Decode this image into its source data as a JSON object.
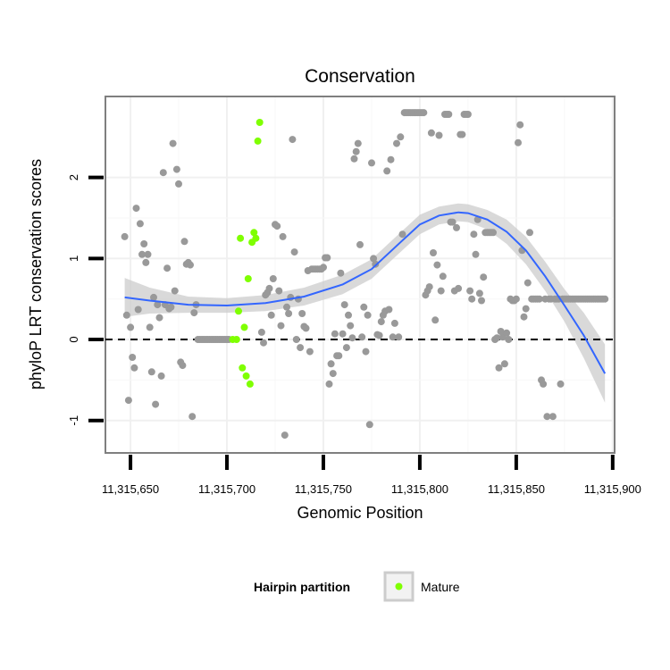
{
  "chart_data": {
    "type": "scatter",
    "title": "Conservation",
    "xlabel": "Genomic Position",
    "ylabel": "phyloP LRT conservation scores",
    "xlim": [
      11315637,
      11315901
    ],
    "ylim": [
      -1.4,
      3.0
    ],
    "x_ticks": [
      11315650,
      11315700,
      11315750,
      11315800,
      11315850,
      11315900
    ],
    "x_tick_labels": [
      "11,315,650",
      "11,315,700",
      "11,315,750",
      "11,315,800",
      "11,315,850",
      "11,315,900"
    ],
    "y_ticks": [
      -1,
      0,
      1,
      2
    ],
    "y_tick_labels": [
      "-1",
      "0",
      "1",
      "2"
    ],
    "grid": true,
    "reference_line": {
      "y": 0,
      "style": "dashed"
    },
    "legend": {
      "title": "Hairpin partition",
      "position": "bottom",
      "entries": [
        "Mature"
      ]
    },
    "colors": {
      "other": "#999999",
      "mature": "#7fff00",
      "smooth": "#3366ff",
      "ribbon": "#cccccc",
      "reference": "#000000"
    },
    "series": [
      {
        "name": "",
        "points": [
          [
            11315647,
            1.27
          ],
          [
            11315648,
            0.3
          ],
          [
            11315649,
            -0.75
          ],
          [
            11315650,
            0.15
          ],
          [
            11315651,
            -0.22
          ],
          [
            11315652,
            -0.35
          ],
          [
            11315653,
            1.62
          ],
          [
            11315654,
            0.37
          ],
          [
            11315655,
            1.43
          ],
          [
            11315656,
            1.05
          ],
          [
            11315657,
            1.18
          ],
          [
            11315658,
            0.95
          ],
          [
            11315659,
            1.05
          ],
          [
            11315660,
            0.15
          ],
          [
            11315661,
            -0.4
          ],
          [
            11315662,
            0.52
          ],
          [
            11315663,
            -0.8
          ],
          [
            11315664,
            0.43
          ],
          [
            11315665,
            0.27
          ],
          [
            11315666,
            -0.45
          ],
          [
            11315667,
            2.06
          ],
          [
            11315668,
            0.43
          ],
          [
            11315669,
            0.88
          ],
          [
            11315670,
            0.38
          ],
          [
            11315671,
            0.4
          ],
          [
            11315672,
            2.42
          ],
          [
            11315673,
            0.6
          ],
          [
            11315674,
            2.1
          ],
          [
            11315675,
            1.92
          ],
          [
            11315676,
            -0.28
          ],
          [
            11315677,
            -0.32
          ],
          [
            11315678,
            1.21
          ],
          [
            11315679,
            0.93
          ],
          [
            11315680,
            0.95
          ],
          [
            11315681,
            0.92
          ],
          [
            11315682,
            -0.95
          ],
          [
            11315683,
            0.33
          ],
          [
            11315684,
            0.43
          ],
          [
            11315685,
            0.0
          ],
          [
            11315686,
            0.0
          ],
          [
            11315687,
            0.0
          ],
          [
            11315688,
            0.0
          ],
          [
            11315689,
            0.0
          ],
          [
            11315690,
            0.0
          ],
          [
            11315691,
            0.0
          ],
          [
            11315692,
            0.0
          ],
          [
            11315693,
            0.0
          ],
          [
            11315694,
            0.0
          ],
          [
            11315695,
            0.0
          ],
          [
            11315696,
            0.0
          ],
          [
            11315697,
            0.0
          ],
          [
            11315698,
            0.0
          ],
          [
            11315699,
            0.0
          ],
          [
            11315700,
            0.0
          ],
          [
            11315701,
            0.0
          ],
          [
            11315718,
            0.09
          ],
          [
            11315719,
            -0.04
          ],
          [
            11315720,
            0.55
          ],
          [
            11315721,
            0.58
          ],
          [
            11315722,
            0.63
          ],
          [
            11315723,
            0.3
          ],
          [
            11315724,
            0.75
          ],
          [
            11315725,
            1.42
          ],
          [
            11315726,
            1.4
          ],
          [
            11315727,
            0.6
          ],
          [
            11315728,
            0.17
          ],
          [
            11315729,
            1.27
          ],
          [
            11315730,
            -1.18
          ],
          [
            11315731,
            0.4
          ],
          [
            11315732,
            0.32
          ],
          [
            11315733,
            0.52
          ],
          [
            11315734,
            2.47
          ],
          [
            11315735,
            1.08
          ],
          [
            11315736,
            0.0
          ],
          [
            11315737,
            0.5
          ],
          [
            11315738,
            -0.1
          ],
          [
            11315739,
            0.32
          ],
          [
            11315740,
            0.16
          ],
          [
            11315741,
            0.14
          ],
          [
            11315742,
            0.85
          ],
          [
            11315743,
            -0.15
          ],
          [
            11315744,
            0.87
          ],
          [
            11315745,
            0.87
          ],
          [
            11315746,
            0.87
          ],
          [
            11315747,
            0.87
          ],
          [
            11315748,
            0.87
          ],
          [
            11315749,
            0.87
          ],
          [
            11315750,
            0.89
          ],
          [
            11315751,
            1.01
          ],
          [
            11315752,
            1.01
          ],
          [
            11315753,
            -0.55
          ],
          [
            11315754,
            -0.3
          ],
          [
            11315755,
            -0.42
          ],
          [
            11315756,
            0.07
          ],
          [
            11315757,
            -0.2
          ],
          [
            11315758,
            -0.2
          ],
          [
            11315759,
            0.82
          ],
          [
            11315760,
            0.07
          ],
          [
            11315761,
            0.43
          ],
          [
            11315762,
            -0.1
          ],
          [
            11315763,
            0.3
          ],
          [
            11315764,
            0.17
          ],
          [
            11315765,
            0.02
          ],
          [
            11315766,
            2.23
          ],
          [
            11315767,
            2.32
          ],
          [
            11315768,
            2.42
          ],
          [
            11315769,
            1.17
          ],
          [
            11315770,
            0.03
          ],
          [
            11315771,
            0.4
          ],
          [
            11315772,
            -0.15
          ],
          [
            11315773,
            0.3
          ],
          [
            11315774,
            -1.05
          ],
          [
            11315775,
            2.18
          ],
          [
            11315776,
            1.0
          ],
          [
            11315777,
            0.93
          ],
          [
            11315778,
            0.06
          ],
          [
            11315779,
            0.05
          ],
          [
            11315780,
            0.22
          ],
          [
            11315781,
            0.3
          ],
          [
            11315782,
            0.35
          ],
          [
            11315783,
            2.08
          ],
          [
            11315784,
            0.37
          ],
          [
            11315785,
            2.22
          ],
          [
            11315786,
            0.03
          ],
          [
            11315787,
            0.2
          ],
          [
            11315788,
            2.42
          ],
          [
            11315789,
            0.03
          ],
          [
            11315790,
            2.5
          ],
          [
            11315791,
            1.3
          ],
          [
            11315792,
            2.8
          ],
          [
            11315793,
            2.8
          ],
          [
            11315794,
            2.8
          ],
          [
            11315795,
            2.8
          ],
          [
            11315796,
            2.8
          ],
          [
            11315797,
            2.8
          ],
          [
            11315798,
            2.8
          ],
          [
            11315799,
            2.8
          ],
          [
            11315800,
            2.8
          ],
          [
            11315801,
            2.8
          ],
          [
            11315802,
            2.8
          ],
          [
            11315803,
            0.55
          ],
          [
            11315804,
            0.6
          ],
          [
            11315805,
            0.65
          ],
          [
            11315806,
            2.55
          ],
          [
            11315807,
            1.07
          ],
          [
            11315808,
            0.24
          ],
          [
            11315809,
            0.92
          ],
          [
            11315810,
            2.52
          ],
          [
            11315811,
            0.6
          ],
          [
            11315812,
            0.78
          ],
          [
            11315813,
            2.78
          ],
          [
            11315814,
            2.78
          ],
          [
            11315815,
            2.78
          ],
          [
            11315816,
            1.45
          ],
          [
            11315817,
            1.45
          ],
          [
            11315818,
            0.6
          ],
          [
            11315819,
            1.38
          ],
          [
            11315820,
            0.63
          ],
          [
            11315821,
            2.53
          ],
          [
            11315822,
            2.53
          ],
          [
            11315823,
            2.78
          ],
          [
            11315824,
            2.78
          ],
          [
            11315825,
            2.78
          ],
          [
            11315826,
            0.6
          ],
          [
            11315827,
            0.5
          ],
          [
            11315828,
            1.3
          ],
          [
            11315829,
            1.05
          ],
          [
            11315830,
            1.48
          ],
          [
            11315831,
            0.57
          ],
          [
            11315832,
            0.48
          ],
          [
            11315833,
            0.77
          ],
          [
            11315834,
            1.32
          ],
          [
            11315835,
            1.32
          ],
          [
            11315836,
            1.32
          ],
          [
            11315837,
            1.32
          ],
          [
            11315838,
            1.32
          ],
          [
            11315839,
            0.0
          ],
          [
            11315840,
            0.02
          ],
          [
            11315841,
            -0.35
          ],
          [
            11315842,
            0.1
          ],
          [
            11315843,
            0.03
          ],
          [
            11315844,
            -0.3
          ],
          [
            11315845,
            0.08
          ],
          [
            11315846,
            0.0
          ],
          [
            11315847,
            0.5
          ],
          [
            11315848,
            0.48
          ],
          [
            11315849,
            0.48
          ],
          [
            11315850,
            0.5
          ],
          [
            11315851,
            2.43
          ],
          [
            11315852,
            2.65
          ],
          [
            11315853,
            1.1
          ],
          [
            11315854,
            0.28
          ],
          [
            11315855,
            0.38
          ],
          [
            11315856,
            0.7
          ],
          [
            11315857,
            1.32
          ],
          [
            11315858,
            0.5
          ],
          [
            11315859,
            0.5
          ],
          [
            11315860,
            0.5
          ],
          [
            11315861,
            0.5
          ],
          [
            11315862,
            0.5
          ],
          [
            11315863,
            -0.5
          ],
          [
            11315864,
            -0.55
          ],
          [
            11315865,
            0.5
          ],
          [
            11315866,
            -0.95
          ],
          [
            11315867,
            0.5
          ],
          [
            11315868,
            0.5
          ],
          [
            11315869,
            -0.95
          ],
          [
            11315870,
            0.5
          ],
          [
            11315871,
            0.5
          ],
          [
            11315872,
            0.5
          ],
          [
            11315873,
            -0.55
          ],
          [
            11315874,
            0.5
          ],
          [
            11315875,
            0.5
          ],
          [
            11315876,
            0.5
          ],
          [
            11315877,
            0.5
          ],
          [
            11315878,
            0.5
          ],
          [
            11315879,
            0.5
          ],
          [
            11315880,
            0.5
          ],
          [
            11315881,
            0.5
          ],
          [
            11315882,
            0.5
          ],
          [
            11315883,
            0.5
          ],
          [
            11315884,
            0.5
          ],
          [
            11315885,
            0.5
          ],
          [
            11315886,
            0.5
          ],
          [
            11315887,
            0.5
          ],
          [
            11315888,
            0.5
          ],
          [
            11315889,
            0.5
          ],
          [
            11315890,
            0.5
          ],
          [
            11315891,
            0.5
          ],
          [
            11315892,
            0.5
          ],
          [
            11315893,
            0.5
          ],
          [
            11315894,
            0.5
          ],
          [
            11315895,
            0.5
          ],
          [
            11315896,
            0.5
          ]
        ]
      },
      {
        "name": "Mature",
        "points": [
          [
            11315703,
            0.0
          ],
          [
            11315705,
            0.0
          ],
          [
            11315706,
            0.35
          ],
          [
            11315707,
            1.25
          ],
          [
            11315708,
            -0.35
          ],
          [
            11315709,
            0.15
          ],
          [
            11315710,
            -0.45
          ],
          [
            11315711,
            0.75
          ],
          [
            11315712,
            -0.55
          ],
          [
            11315713,
            1.2
          ],
          [
            11315714,
            1.32
          ],
          [
            11315715,
            1.25
          ],
          [
            11315716,
            2.45
          ],
          [
            11315717,
            2.68
          ]
        ]
      }
    ],
    "smooth": {
      "x": [
        11315647,
        11315660,
        11315680,
        11315700,
        11315720,
        11315740,
        11315760,
        11315775,
        11315790,
        11315800,
        11315810,
        11315820,
        11315825,
        11315835,
        11315845,
        11315855,
        11315865,
        11315875,
        11315885,
        11315896
      ],
      "y": [
        0.52,
        0.48,
        0.43,
        0.42,
        0.45,
        0.53,
        0.68,
        0.87,
        1.2,
        1.42,
        1.53,
        1.57,
        1.56,
        1.48,
        1.33,
        1.1,
        0.78,
        0.42,
        0.05,
        -0.42
      ],
      "lower": [
        0.28,
        0.32,
        0.33,
        0.33,
        0.35,
        0.42,
        0.56,
        0.75,
        1.08,
        1.3,
        1.42,
        1.46,
        1.45,
        1.36,
        1.18,
        0.93,
        0.6,
        0.22,
        -0.23,
        -0.78
      ],
      "upper": [
        0.76,
        0.64,
        0.53,
        0.51,
        0.55,
        0.64,
        0.8,
        0.99,
        1.32,
        1.54,
        1.64,
        1.68,
        1.67,
        1.6,
        1.48,
        1.27,
        0.96,
        0.62,
        0.33,
        -0.06
      ]
    }
  }
}
